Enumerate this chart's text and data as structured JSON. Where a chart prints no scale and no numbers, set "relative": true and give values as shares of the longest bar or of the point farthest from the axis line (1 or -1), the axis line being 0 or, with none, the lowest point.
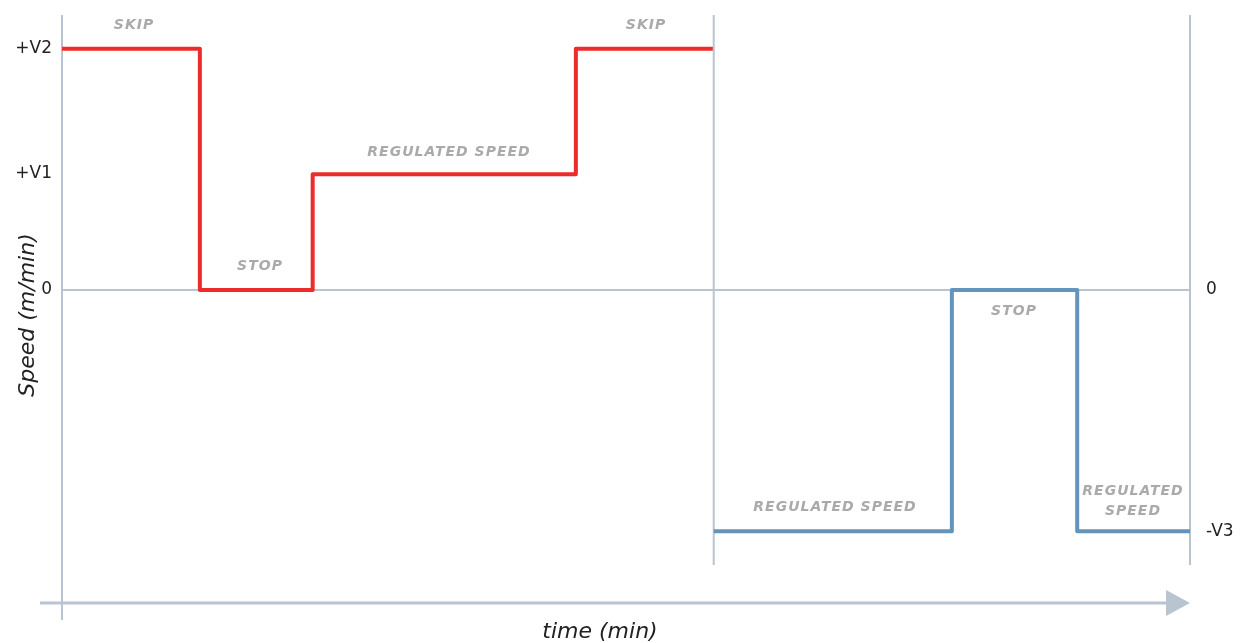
{
  "chart_data": {
    "type": "step",
    "relative": true,
    "xlabel": "time (min)",
    "ylabel": "Speed (m/min)",
    "categories": [
      null,
      null,
      null,
      null,
      null,
      null,
      null,
      null,
      null,
      null,
      null,
      null,
      null,
      null,
      null,
      null,
      null,
      null,
      null,
      null,
      null,
      null,
      null,
      null,
      null,
      null,
      null,
      null,
      null,
      null,
      null,
      null,
      null,
      null,
      null,
      null,
      null,
      null,
      null,
      null,
      null,
      null,
      null,
      null,
      null,
      null,
      null,
      null,
      null,
      null,
      null,
      null,
      null,
      null,
      null,
      null,
      null,
      null,
      null,
      null,
      null,
      null,
      null,
      null,
      null,
      null,
      null,
      null,
      null,
      null,
      null,
      null,
      null,
      null,
      null,
      null,
      null,
      null,
      null,
      null,
      null,
      null,
      null,
      null,
      null,
      null,
      null,
      null,
      null,
      null,
      null
    ],
    "series": [
      {
        "color": "#ee2b2b",
        "values": [
          1,
          1,
          1,
          1,
          1,
          1,
          1,
          1,
          1,
          1,
          1,
          0,
          0,
          0,
          0,
          0,
          0,
          0,
          0,
          0,
          0.48,
          0.48,
          0.48,
          0.48,
          0.48,
          0.48,
          0.48,
          0.48,
          0.48,
          0.48,
          0.48,
          0.48,
          0.48,
          0.48,
          0.48,
          0.48,
          0.48,
          0.48,
          0.48,
          0.48,
          0.48,
          1,
          1,
          1,
          1,
          1,
          1,
          1,
          1,
          1,
          1,
          1,
          1,
          null,
          null,
          null,
          null,
          null,
          null,
          null,
          null,
          null,
          null,
          null,
          null,
          null,
          null,
          null,
          null,
          null,
          null,
          null,
          null,
          null,
          null,
          null,
          null,
          null,
          null,
          null,
          null,
          null,
          null,
          null,
          null,
          null,
          null,
          null,
          null,
          null,
          null
        ]
      },
      {
        "color": "#6494bb",
        "values": [
          null,
          null,
          null,
          null,
          null,
          null,
          null,
          null,
          null,
          null,
          null,
          null,
          null,
          null,
          null,
          null,
          null,
          null,
          null,
          null,
          null,
          null,
          null,
          null,
          null,
          null,
          null,
          null,
          null,
          null,
          null,
          null,
          null,
          null,
          null,
          null,
          null,
          null,
          null,
          null,
          null,
          null,
          null,
          null,
          null,
          null,
          null,
          null,
          null,
          null,
          null,
          null,
          -1,
          -1,
          -1,
          -1,
          -1,
          -1,
          -1,
          -1,
          -1,
          -1,
          -1,
          -1,
          -1,
          -1,
          -1,
          -1,
          -1,
          -1,
          -1,
          0,
          0,
          0,
          0,
          0,
          0,
          0,
          0,
          0,
          0,
          -1,
          -1,
          -1,
          -1,
          -1,
          -1,
          -1,
          -1,
          -1,
          -1
        ]
      }
    ],
    "annotations": [
      "+V2",
      "+V1",
      "0",
      "0",
      "-V3",
      "SKIP",
      "STOP",
      "REGULATED SPEED",
      "SKIP",
      "REGULATED SPEED",
      "STOP",
      "REGULATED",
      "SPEED"
    ]
  }
}
